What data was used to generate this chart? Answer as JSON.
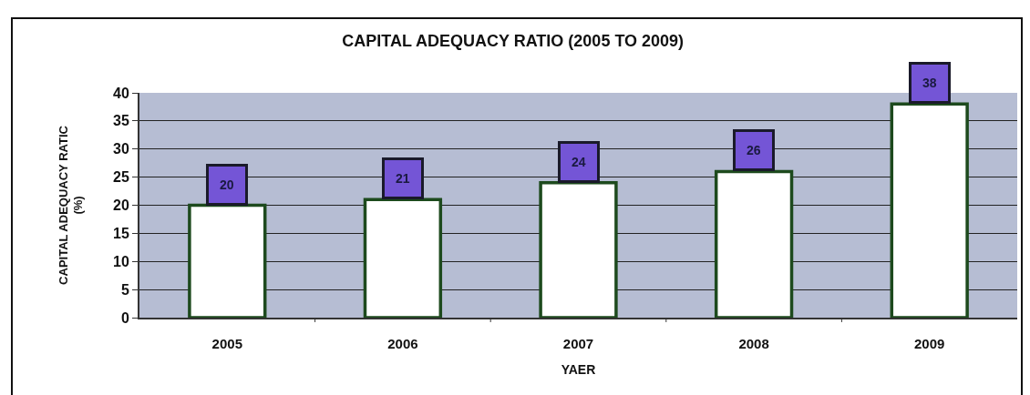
{
  "chart_data": {
    "type": "bar",
    "title": "CAPITAL ADEQUACY RATIO (2005 TO 2009)",
    "xlabel": "YAER",
    "ylabel": "CAPITAL ADEQUACY RATIC (%)",
    "categories": [
      "2005",
      "2006",
      "2007",
      "2008",
      "2009"
    ],
    "values": [
      20,
      21,
      24,
      26,
      38
    ],
    "color": "#ffffff",
    "ylim": [
      0,
      40
    ],
    "yticks": [
      0,
      5,
      10,
      15,
      20,
      25,
      30,
      35,
      40
    ],
    "grid": "y",
    "data_labels": true
  }
}
